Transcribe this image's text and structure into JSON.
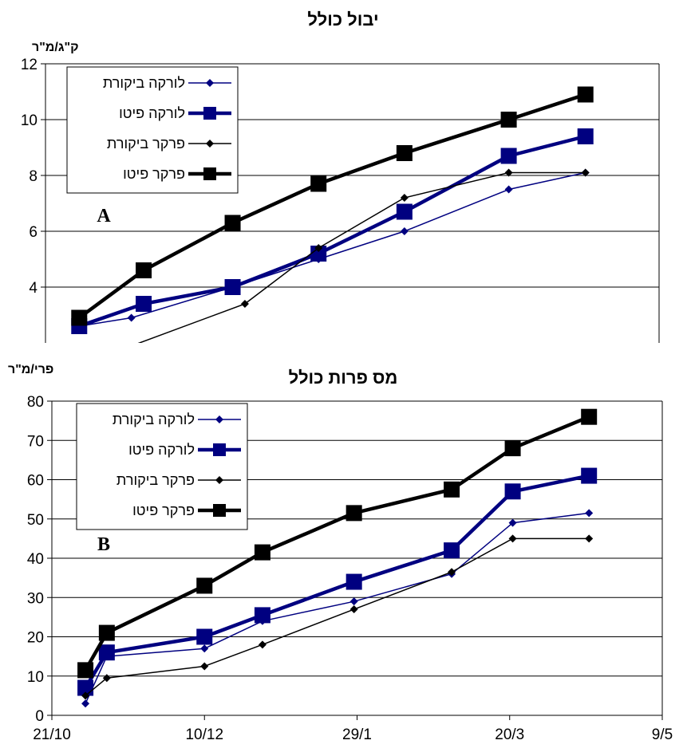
{
  "chart_data": [
    {
      "type": "line",
      "title": "יבול כולל",
      "ylabel": "ק\"ג/מ\"ר",
      "xlabel": "",
      "panel_label": "A",
      "xlim": [
        "21/10",
        "9/5"
      ],
      "ylim": [
        2,
        12
      ],
      "yticks": [
        4,
        6,
        8,
        10,
        12
      ],
      "grid": true,
      "legend_position": "top-left",
      "series": [
        {
          "name": "לורקה ביקורת",
          "color": "#000080",
          "marker": "diamond",
          "line_width": "thin",
          "x": [
            "1/11",
            "18/11",
            "21/12",
            "18/1",
            "15/2",
            "21/3",
            "15/4"
          ],
          "values": [
            2.6,
            2.9,
            4.0,
            5.0,
            6.0,
            7.5,
            8.1
          ]
        },
        {
          "name": "לורקה פיטו",
          "color": "#000080",
          "marker": "square",
          "line_width": "thick",
          "x": [
            "1/11",
            "22/11",
            "21/12",
            "18/1",
            "15/2",
            "21/3",
            "15/4"
          ],
          "values": [
            2.6,
            3.4,
            4.0,
            5.2,
            6.7,
            8.7,
            9.4
          ]
        },
        {
          "name": "פרקר ביקורת",
          "color": "#000000",
          "marker": "diamond",
          "line_width": "thin",
          "x": [
            "1/11",
            "25/12",
            "18/1",
            "15/2",
            "21/3",
            "15/4"
          ],
          "values": [
            1.2,
            3.4,
            5.4,
            7.2,
            8.1,
            8.1
          ]
        },
        {
          "name": "פרקר פיטו",
          "color": "#000000",
          "marker": "square",
          "line_width": "thick",
          "x": [
            "1/11",
            "22/11",
            "21/12",
            "18/1",
            "15/2",
            "21/3",
            "15/4"
          ],
          "values": [
            2.9,
            4.6,
            6.3,
            7.7,
            8.8,
            10.0,
            10.9
          ]
        }
      ]
    },
    {
      "type": "line",
      "title": "מס פרות כולל",
      "ylabel": "פרי/מ\"ר",
      "xlabel": "",
      "panel_label": "B",
      "xlim": [
        "21/10",
        "9/5"
      ],
      "ylim": [
        0,
        80
      ],
      "yticks": [
        0,
        10,
        20,
        30,
        40,
        50,
        60,
        70,
        80
      ],
      "xticks": [
        "21/10",
        "10/12",
        "29/1",
        "20/3",
        "9/5"
      ],
      "grid": true,
      "legend_position": "top-left",
      "series": [
        {
          "name": "לורקה ביקורת",
          "color": "#000080",
          "marker": "diamond",
          "line_width": "thin",
          "x": [
            "1/11",
            "8/11",
            "10/12",
            "29/12",
            "28/1",
            "1/3",
            "21/3",
            "15/4"
          ],
          "values": [
            3,
            15,
            17,
            24,
            29,
            36,
            49,
            51.5
          ]
        },
        {
          "name": "לורקה פיטו",
          "color": "#000080",
          "marker": "square",
          "line_width": "thick",
          "x": [
            "1/11",
            "8/11",
            "10/12",
            "29/12",
            "28/1",
            "1/3",
            "21/3",
            "15/4"
          ],
          "values": [
            7,
            16,
            20,
            25.5,
            34,
            42,
            57,
            61
          ]
        },
        {
          "name": "פרקר ביקורת",
          "color": "#000000",
          "marker": "diamond",
          "line_width": "thin",
          "x": [
            "1/11",
            "8/11",
            "10/12",
            "29/12",
            "28/1",
            "1/3",
            "21/3",
            "15/4"
          ],
          "values": [
            5,
            9.5,
            12.5,
            18,
            27,
            36.5,
            45,
            45
          ]
        },
        {
          "name": "פרקר פיטו",
          "color": "#000000",
          "marker": "square",
          "line_width": "thick",
          "x": [
            "1/11",
            "8/11",
            "10/12",
            "29/12",
            "28/1",
            "1/3",
            "21/3",
            "15/4"
          ],
          "values": [
            11.5,
            21,
            33,
            41.5,
            51.5,
            57.5,
            68,
            76
          ]
        }
      ]
    }
  ]
}
